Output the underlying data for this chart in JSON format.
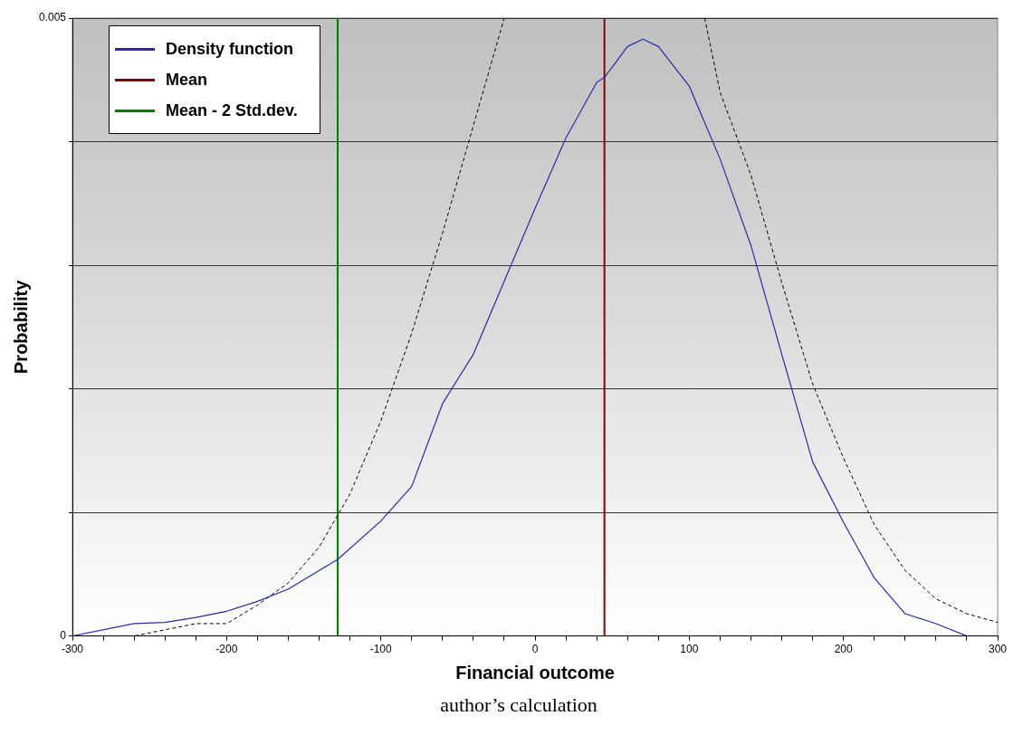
{
  "chart_data": {
    "type": "line",
    "xlabel": "Financial outcome",
    "ylabel": "Probability",
    "annotations": [
      "author’s calculation"
    ],
    "xlim": [
      -300,
      300
    ],
    "xticks": [
      -300,
      {
        "value": -280,
        "label": null
      },
      {
        "value": -260,
        "label": null
      },
      {
        "value": -240,
        "label": null
      },
      {
        "value": -220,
        "label": null
      },
      -200,
      {
        "value": -180,
        "label": null
      },
      {
        "value": -160,
        "label": null
      },
      {
        "value": -140,
        "label": null
      },
      {
        "value": -120,
        "label": null
      },
      -100,
      {
        "value": -80,
        "label": null
      },
      {
        "value": -60,
        "label": null
      },
      {
        "value": -40,
        "label": null
      },
      {
        "value": -20,
        "label": null
      },
      0,
      {
        "value": 20,
        "label": null
      },
      {
        "value": 40,
        "label": null
      },
      {
        "value": 60,
        "label": null
      },
      {
        "value": 80,
        "label": null
      },
      100,
      {
        "value": 120,
        "label": null
      },
      {
        "value": 140,
        "label": null
      },
      {
        "value": 160,
        "label": null
      },
      {
        "value": 180,
        "label": null
      },
      200,
      {
        "value": 220,
        "label": null
      },
      {
        "value": 240,
        "label": null
      },
      {
        "value": 260,
        "label": null
      },
      {
        "value": 280,
        "label": null
      },
      300
    ],
    "ylim": [
      0,
      0.005
    ],
    "yticks": [
      0,
      {
        "value": 0.001,
        "label": null
      },
      {
        "value": 0.002,
        "label": null
      },
      {
        "value": 0.003,
        "label": null
      },
      {
        "value": 0.004,
        "label": null
      },
      0.005
    ],
    "grid": "y",
    "legend": "top left",
    "marker": "none",
    "series": [
      {
        "name": "Density function",
        "color": "#2a2aa8",
        "line_style": "solid",
        "x": [
          -300,
          -260,
          -240,
          -220,
          -200,
          -180,
          -160,
          -128,
          -100,
          -80,
          -60,
          -40,
          -20,
          0,
          20,
          40,
          45,
          60,
          70,
          80,
          100,
          120,
          140,
          160,
          180,
          200,
          220,
          240,
          260,
          280
        ],
        "values": [
          0,
          0.0001,
          0.00011,
          0.00015,
          0.0002,
          0.00028,
          0.00038,
          0.00062,
          0.00093,
          0.00121,
          0.00188,
          0.00228,
          0.00287,
          0.00346,
          0.00403,
          0.00448,
          0.00452,
          0.00477,
          0.00483,
          0.00477,
          0.00445,
          0.00386,
          0.00316,
          0.00228,
          0.00141,
          0.00092,
          0.00047,
          0.00018,
          0.0001,
          0
        ]
      },
      {
        "color": "#000000",
        "line_style": "dashed",
        "x": [
          -280,
          -260,
          -220,
          -200,
          -180,
          -160,
          -140,
          -120,
          -100,
          -80,
          -60,
          -40,
          -20,
          45,
          110,
          120,
          140,
          160,
          180,
          200,
          220,
          240,
          260,
          280,
          300
        ],
        "values": [
          0,
          0,
          0.0001,
          0.0001,
          0.00025,
          0.00043,
          0.00072,
          0.00115,
          0.00174,
          0.00245,
          0.00326,
          0.00413,
          0.005,
          null,
          0.005,
          0.0044,
          0.00373,
          0.00286,
          0.00204,
          0.00144,
          0.0009,
          0.00053,
          0.0003,
          0.00018,
          0.00011
        ]
      },
      {
        "name": "Mean",
        "color": "#8b0000",
        "line_style": "solid",
        "x": [
          45,
          45
        ],
        "values": [
          0,
          0.005
        ]
      },
      {
        "name": "Mean - 2 Std.dev.",
        "color": "#008000",
        "line_style": "solid",
        "x": [
          -128,
          -128
        ],
        "values": [
          0,
          0.005
        ]
      }
    ]
  }
}
